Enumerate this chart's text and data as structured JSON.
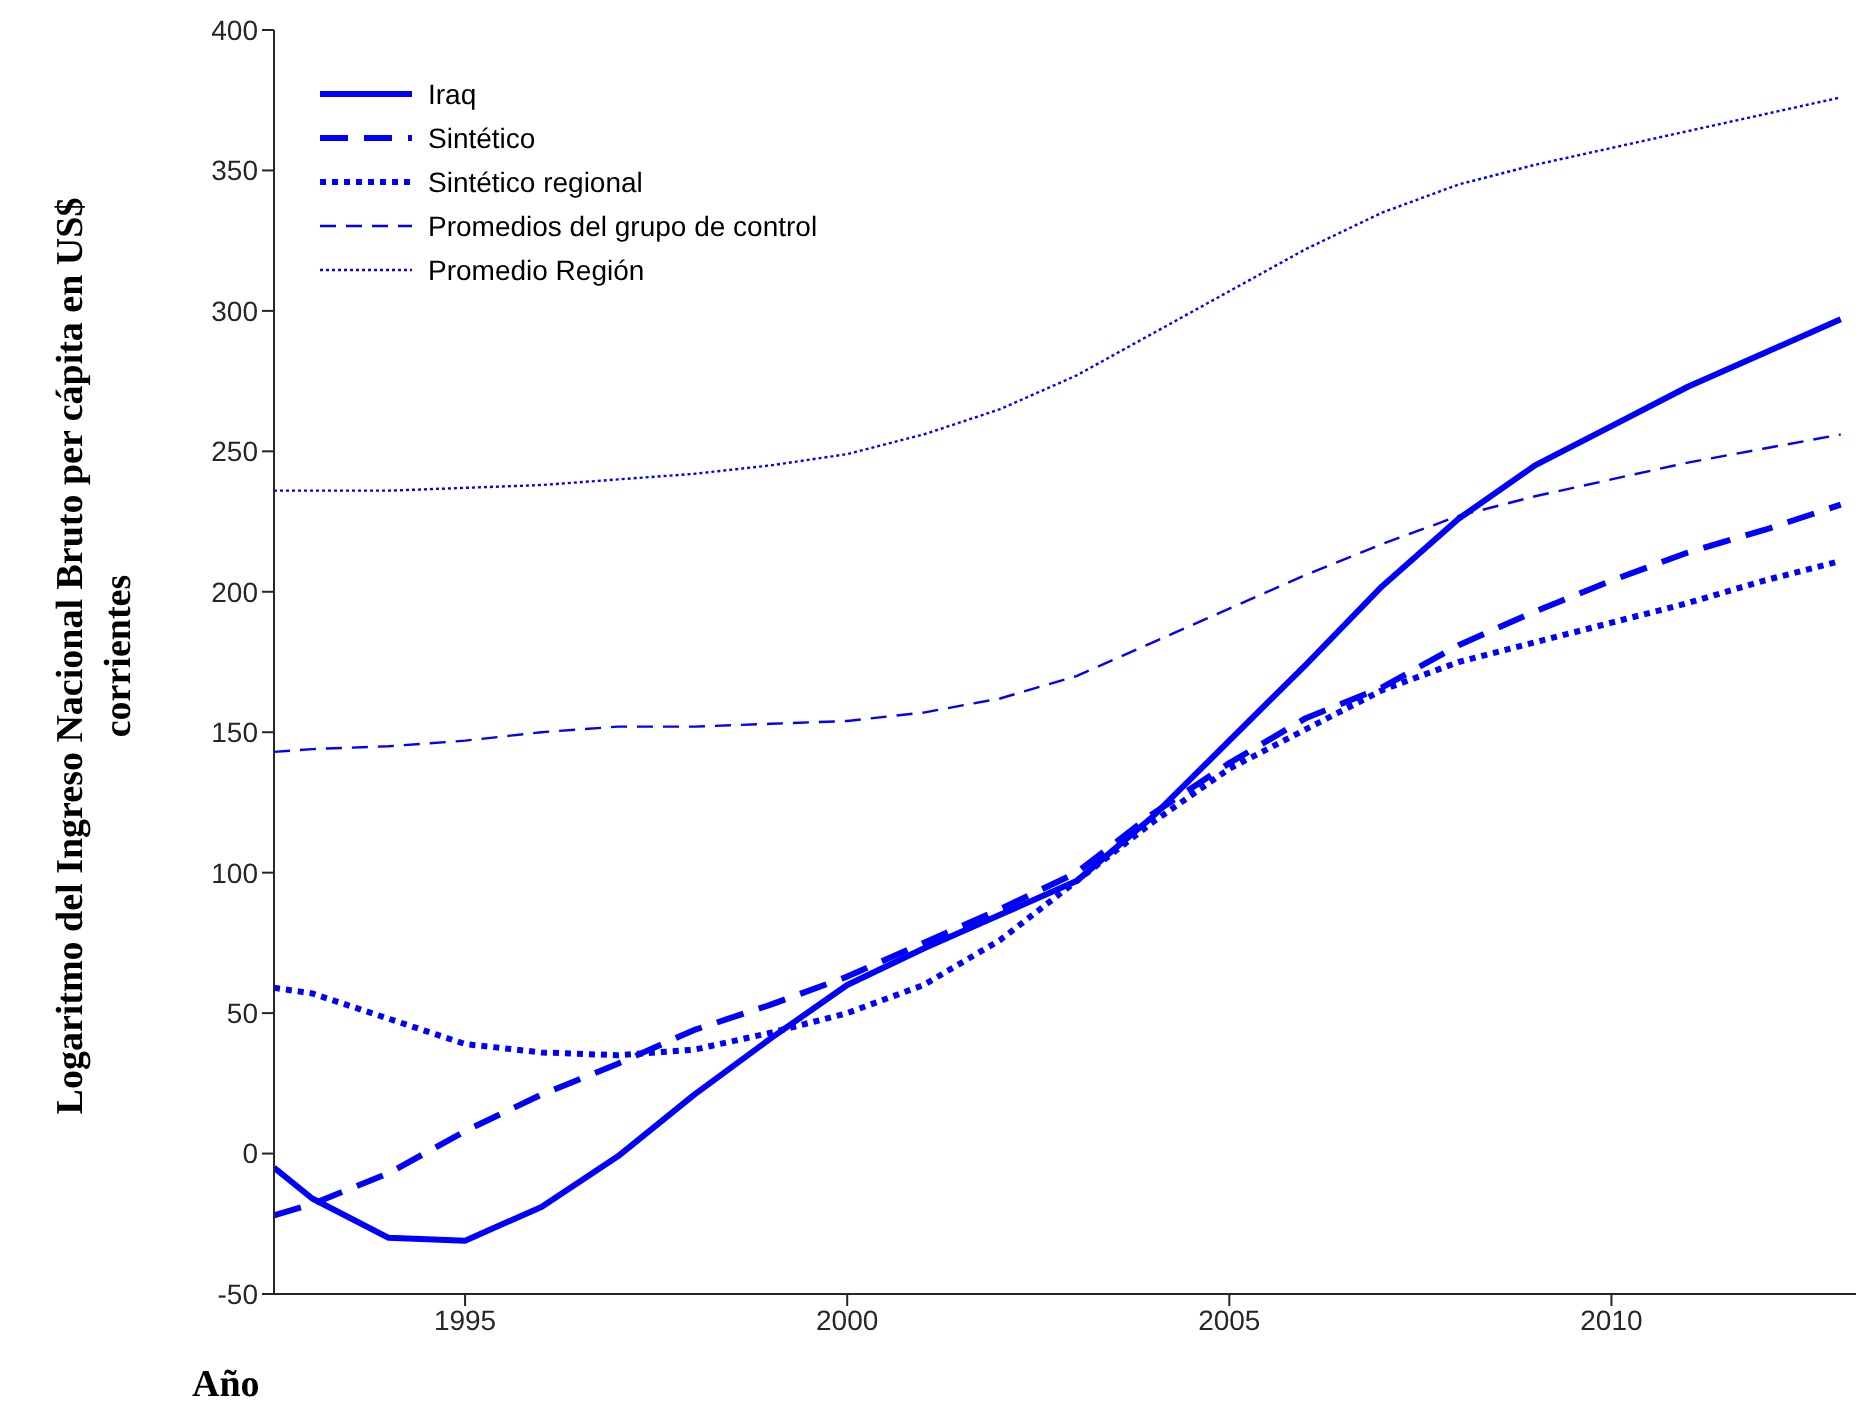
{
  "chart_data": {
    "type": "line",
    "xlabel": "Año",
    "ylabel": "Logaritmo del Ingreso Nacional Bruto per cápita en US$ corrientes",
    "x": [
      1992.5,
      1993,
      1994,
      1995,
      1996,
      1997,
      1998,
      1999,
      2000,
      2001,
      2002,
      2003,
      2004,
      2005,
      2006,
      2007,
      2008,
      2009,
      2010,
      2011,
      2012,
      2013
    ],
    "series": [
      {
        "name": "Iraq",
        "color": "#0000ff",
        "line_style": "solid",
        "values": [
          -5,
          -16,
          -30,
          -31,
          -19,
          -1,
          21,
          41,
          60,
          73,
          85,
          97,
          120,
          147,
          174,
          202,
          226,
          245,
          259,
          273,
          285,
          297
        ]
      },
      {
        "name": "Sintético",
        "color": "#0000ff",
        "line_style": "dashed",
        "values": [
          -22,
          -18,
          -7,
          8,
          21,
          32,
          44,
          53,
          63,
          75,
          87,
          100,
          121,
          139,
          155,
          166,
          181,
          193,
          204,
          214,
          222,
          231
        ]
      },
      {
        "name": "Sintético regional",
        "color": "#0000ff",
        "line_style": "dotted",
        "values": [
          59,
          57,
          48,
          39,
          36,
          35,
          37,
          43,
          50,
          60,
          76,
          97,
          118,
          137,
          151,
          165,
          175,
          182,
          189,
          196,
          204,
          211
        ]
      },
      {
        "name": "Promedios del grupo de control",
        "color": "#0000ff",
        "line_style": "dashed",
        "values": [
          143,
          144,
          145,
          147,
          150,
          152,
          152,
          153,
          154,
          157,
          162,
          170,
          182,
          194,
          206,
          217,
          227,
          234,
          240,
          246,
          251,
          256
        ]
      },
      {
        "name": "Promedio Región",
        "color": "#0000ff",
        "line_style": "dotted",
        "values": [
          236,
          236,
          236,
          237,
          238,
          240,
          242,
          245,
          249,
          256,
          265,
          277,
          292,
          307,
          322,
          335,
          345,
          352,
          358,
          364,
          370,
          376
        ]
      }
    ],
    "xlim": [
      1992.5,
      2013.2
    ],
    "xticks": [
      1995,
      2000,
      2005,
      2010
    ],
    "ylim": [
      -50,
      400
    ],
    "yticks": [
      -50,
      0,
      50,
      100,
      150,
      200,
      250,
      300,
      350,
      400
    ],
    "grid": false,
    "legend": "top left",
    "marker": "none"
  }
}
